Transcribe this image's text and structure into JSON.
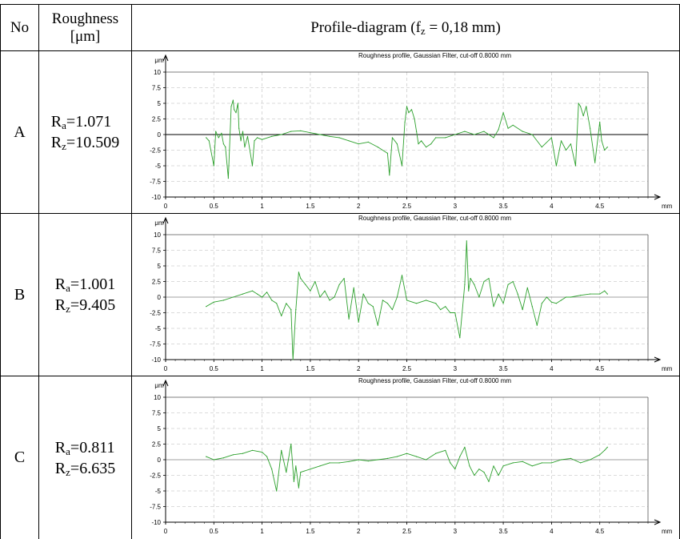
{
  "header": {
    "no": "No",
    "roughness_line1": "Roughness",
    "roughness_line2": "[μm]",
    "profile_prefix": "Profile-diagram (f",
    "profile_sub": "z",
    "profile_suffix": " = 0,18 mm)"
  },
  "rows": [
    {
      "id": "A",
      "ra_label": "R",
      "ra_sub": "a",
      "ra_value": "=1.071",
      "rz_label": "R",
      "rz_sub": "z",
      "rz_value": "=10.509"
    },
    {
      "id": "B",
      "ra_label": "R",
      "ra_sub": "a",
      "ra_value": "=1.001",
      "rz_label": "R",
      "rz_sub": "z",
      "rz_value": "=9.405"
    },
    {
      "id": "C",
      "ra_label": "R",
      "ra_sub": "a",
      "ra_value": "=0.811",
      "rz_label": "R",
      "rz_sub": "z",
      "rz_value": "=6.635"
    }
  ],
  "chart_data": [
    {
      "type": "line",
      "title": "Roughness profile, Gaussian Filter, cut-off 0.8000 mm",
      "ylabel": "μm",
      "xlabel": "mm",
      "xlim": [
        0,
        5
      ],
      "ylim": [
        -10,
        10
      ],
      "x_ticks": [
        "0",
        "0.5",
        "1",
        "1.5",
        "2",
        "2.5",
        "3",
        "3.5",
        "4",
        "4.5"
      ],
      "y_ticks": [
        "10",
        "7.5",
        "5",
        "2.5",
        "0",
        "-2.5",
        "-5",
        "-7.5",
        "-10"
      ],
      "zero_line_color": "#000000",
      "line_color": "#2ca02c",
      "series": [
        {
          "x": [
            0.42,
            0.45,
            0.5,
            0.52,
            0.55,
            0.58,
            0.6,
            0.62,
            0.65,
            0.68,
            0.7,
            0.71,
            0.73,
            0.75,
            0.76,
            0.78,
            0.8,
            0.82,
            0.85,
            0.9,
            0.92,
            0.95,
            1.0,
            1.1,
            1.2,
            1.3,
            1.4,
            1.5,
            1.6,
            1.7,
            1.8,
            1.9,
            2.0,
            2.1,
            2.2,
            2.3,
            2.32,
            2.35,
            2.4,
            2.45,
            2.48,
            2.5,
            2.52,
            2.55,
            2.58,
            2.6,
            2.62,
            2.65,
            2.7,
            2.75,
            2.8,
            2.9,
            3.0,
            3.1,
            3.2,
            3.3,
            3.4,
            3.45,
            3.5,
            3.55,
            3.6,
            3.7,
            3.8,
            3.9,
            4.0,
            4.05,
            4.1,
            4.15,
            4.2,
            4.25,
            4.28,
            4.3,
            4.33,
            4.36,
            4.4,
            4.45,
            4.5,
            4.52,
            4.55,
            4.58
          ],
          "y": [
            -0.5,
            -1.0,
            -5.0,
            0.5,
            -0.5,
            0.2,
            -1.5,
            -2.0,
            -7.0,
            4.5,
            5.5,
            4.0,
            3.5,
            5.0,
            1.0,
            -1.0,
            0.5,
            -2.0,
            -0.3,
            -5.0,
            -1.0,
            -0.5,
            -0.8,
            -0.3,
            0.0,
            0.5,
            0.6,
            0.3,
            0.0,
            -0.3,
            -0.5,
            -1.0,
            -1.5,
            -1.2,
            -2.0,
            -3.0,
            -6.5,
            -0.5,
            -1.5,
            -5.0,
            2.0,
            4.5,
            3.5,
            4.0,
            2.5,
            0.5,
            -1.5,
            -1.0,
            -2.0,
            -1.5,
            -0.5,
            -0.5,
            0.0,
            0.5,
            0.0,
            0.5,
            -0.5,
            0.8,
            3.5,
            1.0,
            1.5,
            0.5,
            0.0,
            -2.0,
            -0.5,
            -5.0,
            -1.0,
            -2.5,
            -1.5,
            -5.0,
            5.0,
            4.5,
            3.0,
            4.5,
            1.0,
            -4.5,
            2.0,
            -1.0,
            -2.5,
            -2.0
          ]
        }
      ]
    },
    {
      "type": "line",
      "title": "Roughness profile, Gaussian Filter, cut-off 0.8000 mm",
      "ylabel": "μm",
      "xlabel": "mm",
      "xlim": [
        0,
        5
      ],
      "ylim": [
        -10,
        10
      ],
      "x_ticks": [
        "0",
        "0.5",
        "1",
        "1.5",
        "2",
        "2.5",
        "3",
        "3.5",
        "4",
        "4.5"
      ],
      "y_ticks": [
        "10",
        "7.5",
        "5",
        "2.5",
        "0",
        "-2.5",
        "-5",
        "-7.5",
        "-10"
      ],
      "zero_line_color": "#a0a0a0",
      "line_color": "#2ca02c",
      "series": [
        {
          "x": [
            0.42,
            0.5,
            0.6,
            0.7,
            0.8,
            0.9,
            0.95,
            1.0,
            1.05,
            1.1,
            1.15,
            1.2,
            1.25,
            1.3,
            1.32,
            1.35,
            1.38,
            1.4,
            1.45,
            1.5,
            1.55,
            1.6,
            1.65,
            1.7,
            1.75,
            1.8,
            1.85,
            1.9,
            1.95,
            2.0,
            2.05,
            2.1,
            2.15,
            2.2,
            2.25,
            2.3,
            2.35,
            2.4,
            2.45,
            2.5,
            2.6,
            2.7,
            2.8,
            2.85,
            2.9,
            2.95,
            3.0,
            3.05,
            3.1,
            3.12,
            3.14,
            3.16,
            3.2,
            3.25,
            3.3,
            3.35,
            3.4,
            3.45,
            3.5,
            3.55,
            3.6,
            3.65,
            3.7,
            3.75,
            3.8,
            3.85,
            3.9,
            3.95,
            4.0,
            4.05,
            4.1,
            4.15,
            4.2,
            4.3,
            4.4,
            4.5,
            4.55,
            4.58
          ],
          "y": [
            -1.5,
            -0.8,
            -0.5,
            0.0,
            0.5,
            1.0,
            0.5,
            0.0,
            0.8,
            -0.5,
            -1.0,
            -3.0,
            -1.0,
            -2.0,
            -10.0,
            -2.0,
            4.0,
            3.0,
            2.0,
            1.0,
            2.5,
            0.0,
            1.0,
            -0.5,
            0.0,
            2.0,
            3.0,
            -3.5,
            1.5,
            -4.0,
            0.5,
            -1.0,
            -1.5,
            -4.5,
            -0.5,
            -1.0,
            -2.0,
            0.0,
            3.5,
            -0.5,
            -1.0,
            -0.5,
            -1.0,
            -2.0,
            -1.5,
            -2.5,
            -2.5,
            -6.5,
            2.0,
            9.0,
            1.0,
            3.0,
            2.0,
            0.0,
            2.5,
            3.0,
            -1.5,
            0.5,
            -1.0,
            2.0,
            2.5,
            0.5,
            -2.0,
            1.5,
            -1.5,
            -4.5,
            -1.0,
            0.0,
            -0.8,
            -1.0,
            -0.5,
            0.0,
            0.0,
            0.3,
            0.5,
            0.5,
            1.0,
            0.5
          ]
        }
      ]
    },
    {
      "type": "line",
      "title": "Roughness profile, Gaussian Filter, cut-off 0.8000 mm",
      "ylabel": "μm",
      "xlabel": "mm",
      "xlim": [
        0,
        5
      ],
      "ylim": [
        -10,
        10
      ],
      "x_ticks": [
        "0",
        "0.5",
        "1",
        "1.5",
        "2",
        "2.5",
        "3",
        "3.5",
        "4",
        "4.5"
      ],
      "y_ticks": [
        "10",
        "7.5",
        "5",
        "2.5",
        "0",
        "-2.5",
        "-5",
        "-7.5",
        "-10"
      ],
      "zero_line_color": "#a0a0a0",
      "line_color": "#2ca02c",
      "series": [
        {
          "x": [
            0.42,
            0.5,
            0.6,
            0.7,
            0.8,
            0.9,
            1.0,
            1.05,
            1.1,
            1.15,
            1.2,
            1.25,
            1.3,
            1.33,
            1.35,
            1.38,
            1.4,
            1.5,
            1.6,
            1.7,
            1.8,
            1.9,
            2.0,
            2.1,
            2.2,
            2.3,
            2.4,
            2.5,
            2.6,
            2.7,
            2.8,
            2.9,
            2.95,
            3.0,
            3.05,
            3.1,
            3.15,
            3.2,
            3.25,
            3.3,
            3.35,
            3.4,
            3.45,
            3.5,
            3.6,
            3.7,
            3.8,
            3.9,
            4.0,
            4.1,
            4.2,
            4.3,
            4.4,
            4.5,
            4.55,
            4.58
          ],
          "y": [
            0.5,
            0.0,
            0.3,
            0.8,
            1.0,
            1.5,
            1.2,
            0.5,
            -1.5,
            -5.0,
            1.5,
            -2.0,
            2.5,
            -3.5,
            -1.0,
            -4.5,
            -2.0,
            -1.5,
            -1.0,
            -0.5,
            -0.5,
            -0.3,
            0.0,
            -0.2,
            0.0,
            0.2,
            0.5,
            1.0,
            0.5,
            0.0,
            1.0,
            1.5,
            -0.5,
            -1.5,
            0.5,
            2.0,
            -1.0,
            -2.5,
            -1.5,
            -2.0,
            -3.5,
            -1.0,
            -2.5,
            -1.0,
            -0.5,
            -0.3,
            -1.0,
            -0.5,
            -0.5,
            0.0,
            0.2,
            -0.5,
            0.0,
            0.8,
            1.5,
            2.0
          ]
        }
      ]
    }
  ]
}
